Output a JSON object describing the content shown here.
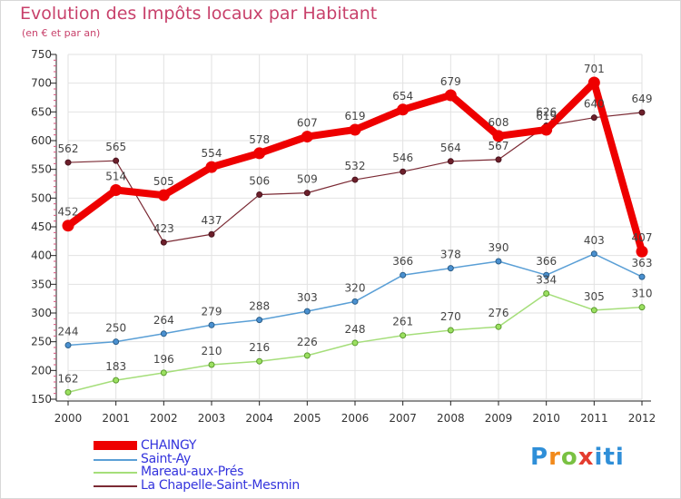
{
  "chart_data": {
    "type": "line",
    "title": "Evolution des Impôts locaux par Habitant",
    "subtitle": "(en € et par an)",
    "xlabel": "",
    "ylabel": "",
    "categories": [
      "2000",
      "2001",
      "2002",
      "2003",
      "2004",
      "2005",
      "2006",
      "2007",
      "2008",
      "2009",
      "2010",
      "2011",
      "2012"
    ],
    "yticks": [
      150,
      200,
      250,
      300,
      350,
      400,
      450,
      500,
      550,
      600,
      650,
      700,
      750
    ],
    "ylim": [
      150,
      750
    ],
    "grid": true,
    "legend_position": "bottom-left",
    "series": [
      {
        "name": "CHAINGY",
        "color": "#ee0000",
        "values": [
          452,
          514,
          505,
          554,
          578,
          607,
          619,
          654,
          679,
          608,
          619,
          701,
          407
        ]
      },
      {
        "name": "Saint-Ay",
        "color": "#5a9fd6",
        "values": [
          244,
          250,
          264,
          279,
          288,
          303,
          320,
          366,
          378,
          390,
          366,
          403,
          363
        ]
      },
      {
        "name": "Mareau-aux-Prés",
        "color": "#a5de7a",
        "values": [
          162,
          183,
          196,
          210,
          216,
          226,
          248,
          261,
          270,
          276,
          334,
          305,
          310
        ]
      },
      {
        "name": "La Chapelle-Saint-Mesmin",
        "color": "#7b2a34",
        "values": [
          562,
          565,
          423,
          437,
          506,
          509,
          532,
          546,
          564,
          567,
          626,
          640,
          649
        ]
      }
    ]
  },
  "logo": {
    "letters": [
      "P",
      "r",
      "o",
      "x",
      "iti"
    ],
    "colors": [
      "#2f8fd8",
      "#f28a1b",
      "#7ac142",
      "#e43c2f",
      "#2f8fd8"
    ]
  }
}
